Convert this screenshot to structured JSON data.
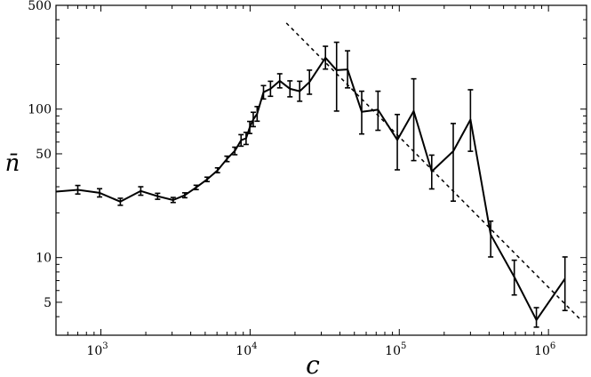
{
  "chart_data": {
    "type": "line",
    "xscale": "log",
    "yscale": "log",
    "xlim": [
      500,
      1800000
    ],
    "ylim": [
      3.0,
      500
    ],
    "xlabel": "c",
    "ylabel": "n̄",
    "grid": false,
    "x_ticks": [
      {
        "value": 1000,
        "label": "10",
        "exp": "3"
      },
      {
        "value": 10000,
        "label": "10",
        "exp": "4"
      },
      {
        "value": 100000,
        "label": "10",
        "exp": "5"
      },
      {
        "value": 1000000,
        "label": "10",
        "exp": "6"
      }
    ],
    "y_ticks": [
      {
        "value": 5,
        "label": "5"
      },
      {
        "value": 10,
        "label": "10"
      },
      {
        "value": 50,
        "label": "50"
      },
      {
        "value": 100,
        "label": "100"
      },
      {
        "value": 500,
        "label": "500"
      }
    ],
    "series": [
      {
        "style": "solid",
        "color": "#000000",
        "points": [
          {
            "x": 500,
            "y": 27.8
          },
          {
            "x": 700,
            "y": 28.6,
            "err": [
              26.8,
              30.6
            ]
          },
          {
            "x": 980,
            "y": 27.3,
            "err": [
              25.6,
              29.1
            ]
          },
          {
            "x": 1350,
            "y": 23.8,
            "err": [
              22.5,
              25.1
            ]
          },
          {
            "x": 1850,
            "y": 28.1,
            "err": [
              26.3,
              30.0
            ]
          },
          {
            "x": 2400,
            "y": 25.9,
            "err": [
              24.7,
              27.1
            ]
          },
          {
            "x": 3050,
            "y": 24.4,
            "err": [
              23.5,
              25.4
            ]
          },
          {
            "x": 3650,
            "y": 26.3,
            "err": [
              25.3,
              27.3
            ]
          },
          {
            "x": 4350,
            "y": 29.7,
            "err": [
              28.7,
              30.7
            ]
          },
          {
            "x": 5150,
            "y": 33.6,
            "err": [
              32.5,
              34.8
            ]
          },
          {
            "x": 6050,
            "y": 38.7,
            "err": [
              37.3,
              40.2
            ]
          },
          {
            "x": 7000,
            "y": 46.2,
            "err": [
              44.3,
              48.2
            ]
          },
          {
            "x": 7900,
            "y": 52.3,
            "err": [
              49.3,
              55.4
            ]
          },
          {
            "x": 8700,
            "y": 61.7,
            "err": [
              56.3,
              67.3
            ]
          },
          {
            "x": 9400,
            "y": 63.5,
            "err": [
              57.8,
              69.7
            ]
          },
          {
            "x": 9950,
            "y": 75.3,
            "err": [
              68.5,
              82.6
            ]
          },
          {
            "x": 10500,
            "y": 85.2,
            "err": [
              76.2,
              95.2
            ]
          },
          {
            "x": 11150,
            "y": 93.0,
            "err": [
              82.9,
              104
            ]
          },
          {
            "x": 12300,
            "y": 130,
            "err": [
              117,
              144
            ]
          },
          {
            "x": 13700,
            "y": 137,
            "err": [
              122,
              154
            ]
          },
          {
            "x": 15800,
            "y": 155,
            "err": [
              139,
              173
            ]
          },
          {
            "x": 18500,
            "y": 137,
            "err": [
              121,
              155
            ]
          },
          {
            "x": 21500,
            "y": 132,
            "err": [
              113,
              154
            ]
          },
          {
            "x": 25000,
            "y": 152,
            "err": [
              126,
              183
            ]
          },
          {
            "x": 32000,
            "y": 222,
            "err": [
              186,
              265
            ]
          },
          {
            "x": 38000,
            "y": 183,
            "err": [
              97,
              282
            ]
          },
          {
            "x": 45000,
            "y": 185,
            "err": [
              139,
              247
            ]
          },
          {
            "x": 56000,
            "y": 96,
            "err": [
              68,
              132
            ]
          },
          {
            "x": 72000,
            "y": 99,
            "err": [
              72,
              132
            ]
          },
          {
            "x": 97000,
            "y": 62,
            "err": [
              39,
              92
            ]
          },
          {
            "x": 125000,
            "y": 97,
            "err": [
              45,
              160
            ]
          },
          {
            "x": 165000,
            "y": 38,
            "err": [
              29,
              49
            ]
          },
          {
            "x": 230000,
            "y": 52,
            "err": [
              24,
              80
            ]
          },
          {
            "x": 300000,
            "y": 85,
            "err": [
              52,
              135
            ]
          },
          {
            "x": 410000,
            "y": 14.3,
            "err": [
              10.1,
              17.6
            ]
          },
          {
            "x": 590000,
            "y": 7.4,
            "err": [
              5.6,
              9.6
            ]
          },
          {
            "x": 830000,
            "y": 3.8,
            "err": [
              3.4,
              4.6
            ]
          },
          {
            "x": 1290000,
            "y": 7.2,
            "err": [
              4.4,
              10.1
            ]
          }
        ]
      },
      {
        "style": "dashed",
        "color": "#000000",
        "points": [
          {
            "x": 17500,
            "y": 380
          },
          {
            "x": 1650000,
            "y": 3.8
          }
        ]
      }
    ]
  }
}
